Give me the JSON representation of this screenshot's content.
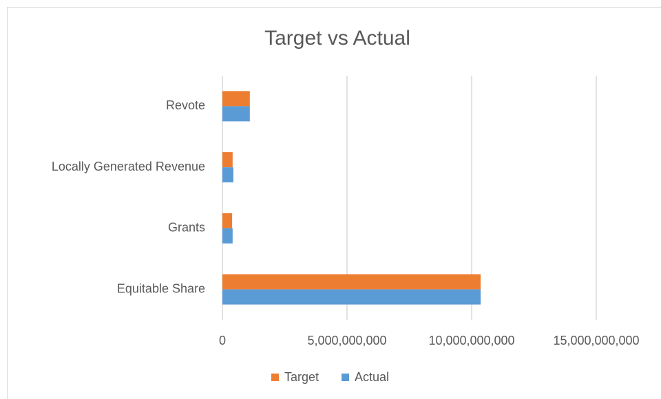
{
  "chart_data": {
    "type": "bar",
    "orientation": "horizontal",
    "title": "Target vs Actual",
    "categories": [
      "Equitable Share",
      "Grants",
      "Locally Generated Revenue",
      "Revote"
    ],
    "series": [
      {
        "name": "Target",
        "color": "#ed7d31",
        "values": [
          10360000000,
          390000000,
          410000000,
          1100000000
        ]
      },
      {
        "name": "Actual",
        "color": "#5b9bd5",
        "values": [
          10360000000,
          410000000,
          440000000,
          1100000000
        ]
      }
    ],
    "xlim": [
      0,
      15000000000
    ],
    "xticks": [
      0,
      {
        "value": 5000000000,
        "label": "5,000,000,000"
      },
      {
        "value": 10000000000,
        "label": "10,000,000,000"
      },
      {
        "value": 15000000000,
        "label": "15,000,000,000"
      }
    ],
    "grid": true,
    "legend": "bottom"
  }
}
